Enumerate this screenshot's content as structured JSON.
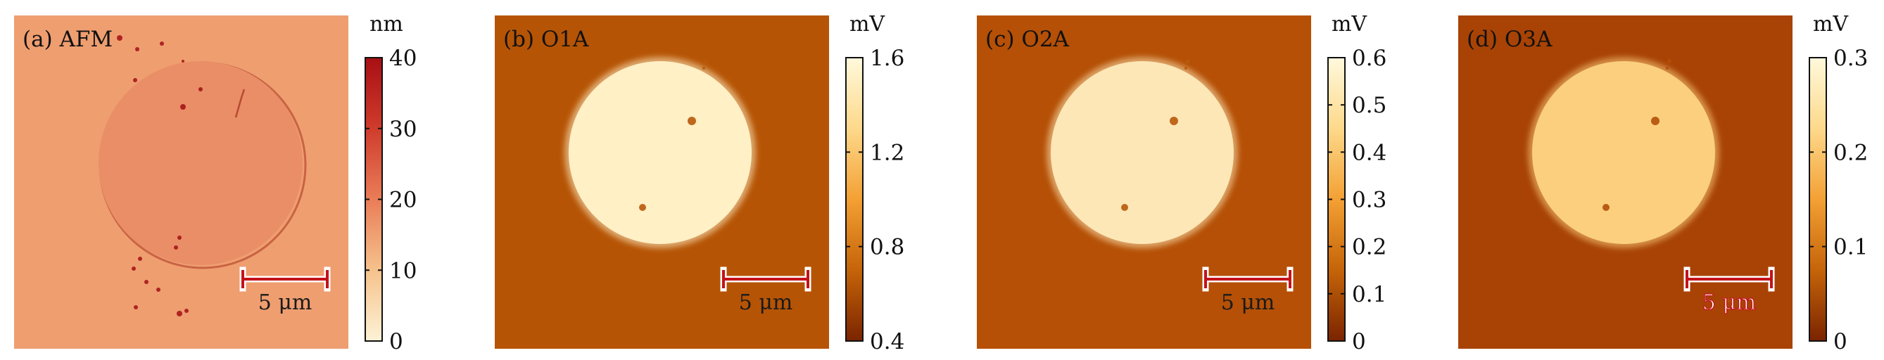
{
  "panels": [
    {
      "id": "a",
      "label": "(a) AFM",
      "colormap": "afm",
      "colors": {
        "background": "#ef9e70",
        "disk": "#e98e67",
        "edge": "#b84a30",
        "defect": "#a10e14"
      },
      "colorbar": {
        "unit": "nm",
        "ticks": [
          "0",
          "10",
          "20",
          "30",
          "40"
        ]
      },
      "scalebar": {
        "label": "5 μm",
        "label_color": "#1a1a1a"
      }
    },
    {
      "id": "b",
      "label": "(b) O1A",
      "colormap": "amp",
      "colors": {
        "background": "#b65405",
        "disk": "#fff0c6",
        "defect": "#b8590a"
      },
      "colorbar": {
        "unit": "mV",
        "ticks": [
          "0.4",
          "0.8",
          "1.2",
          "1.6"
        ]
      },
      "scalebar": {
        "label": "5 μm",
        "label_color": "#1a1a1a"
      }
    },
    {
      "id": "c",
      "label": "(c) O2A",
      "colormap": "amp",
      "colors": {
        "background": "#b55006",
        "disk": "#fde7b6",
        "defect": "#b8590a"
      },
      "colorbar": {
        "unit": "mV",
        "ticks": [
          "0",
          "0.1",
          "0.2",
          "0.3",
          "0.4",
          "0.5",
          "0.6"
        ]
      },
      "scalebar": {
        "label": "5 μm",
        "label_color": "#1a1a1a"
      }
    },
    {
      "id": "d",
      "label": "(d) O3A",
      "colormap": "amp",
      "colors": {
        "background": "#a84305",
        "disk": "#fbcf7e",
        "defect": "#b34f08"
      },
      "colorbar": {
        "unit": "mV",
        "ticks": [
          "0",
          "0.1",
          "0.2",
          "0.3"
        ]
      },
      "scalebar": {
        "label": "5 μm",
        "label_color": "#ffffff"
      }
    }
  ],
  "colormaps": {
    "afm": [
      "#fdf2d6",
      "#f6c28c",
      "#ea7d58",
      "#cf3c2c",
      "#a80f14"
    ],
    "amp": [
      "#7a2400",
      "#c56409",
      "#f3a034",
      "#fdd98b",
      "#fff9dc"
    ]
  },
  "scalebar_color": "#c4121a"
}
